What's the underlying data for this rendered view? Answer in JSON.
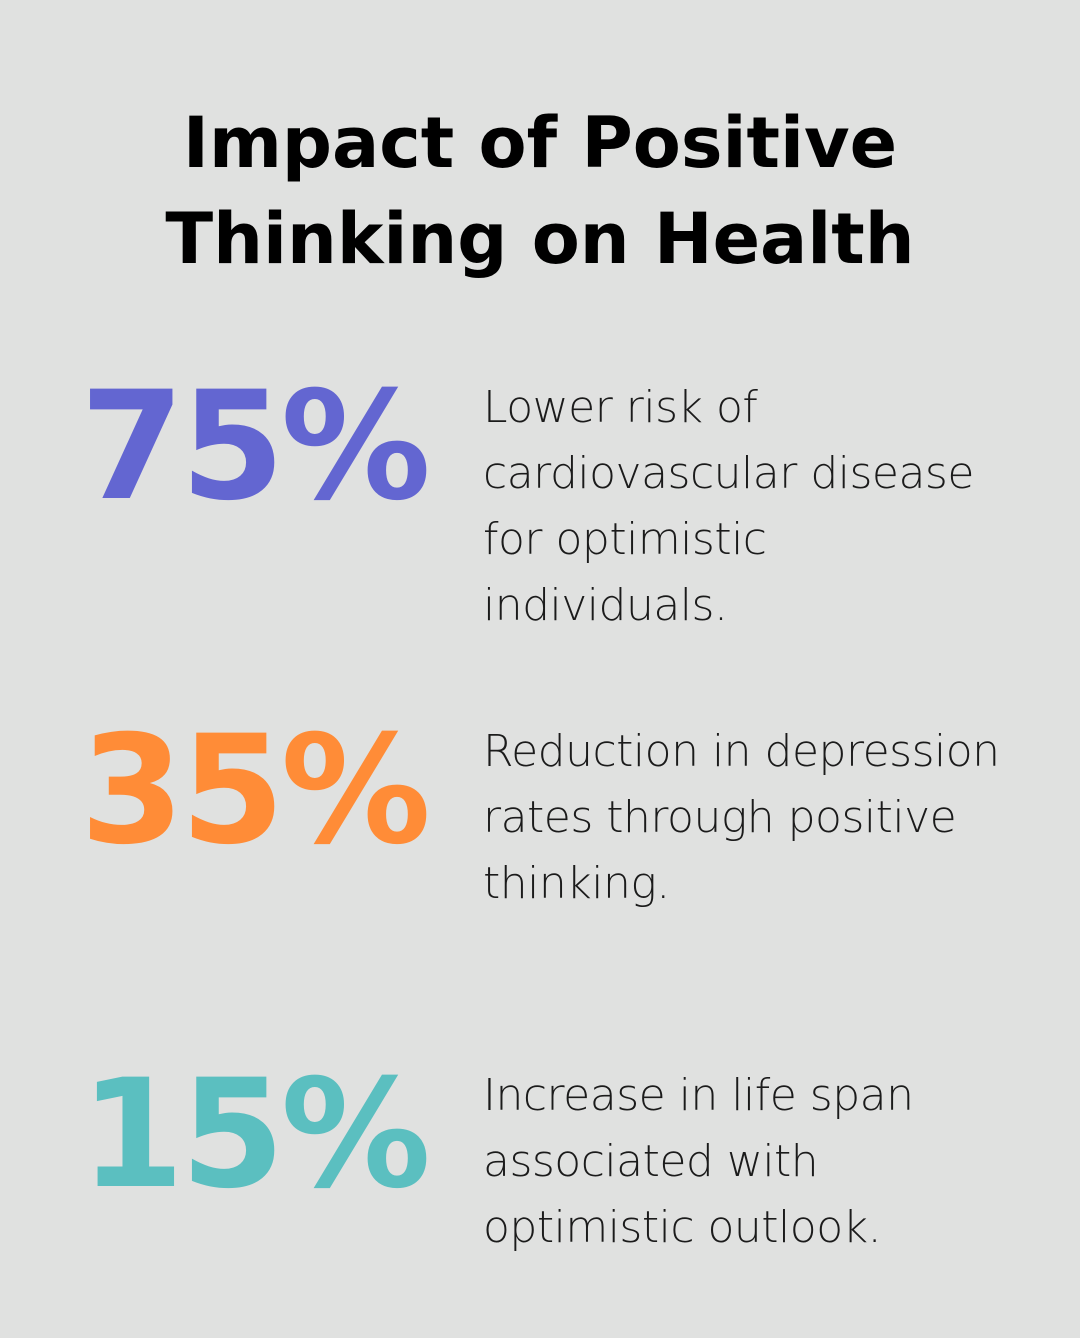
{
  "title": "Impact of Positive Thinking on Health",
  "stats": [
    {
      "value": "75%",
      "color": "#6366d1",
      "description": "Lower risk of cardiovascular disease for optimistic individuals."
    },
    {
      "value": "35%",
      "color": "#ff8c37",
      "description": "Reduction in depression rates through positive thinking."
    },
    {
      "value": "15%",
      "color": "#5bbfc0",
      "description": "Increase in life span associated with optimistic outlook."
    }
  ]
}
